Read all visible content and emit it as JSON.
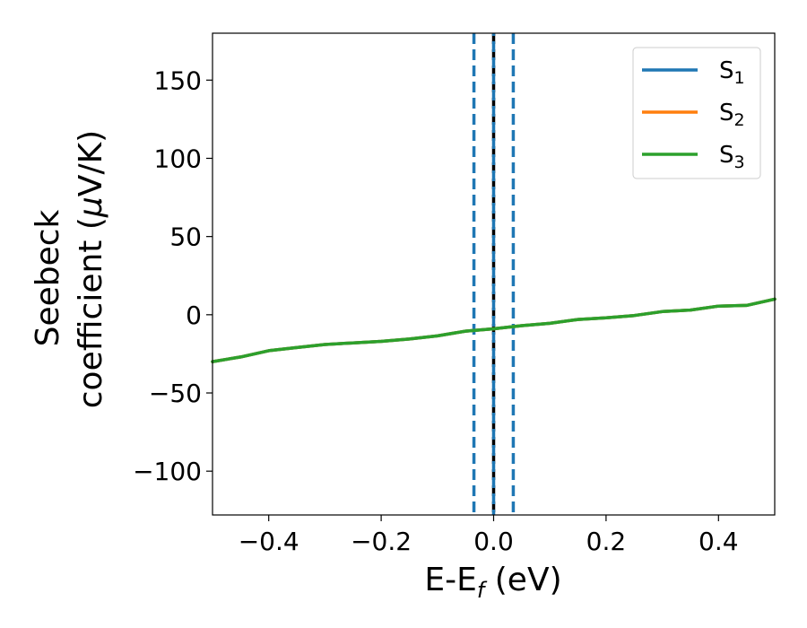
{
  "chart_data": {
    "type": "line",
    "xlabel": {
      "main": "E-E",
      "sub": "f",
      "unit": " (eV)"
    },
    "ylabel": {
      "line1": "Seebeck",
      "line2": "coefficient  (",
      "mu": "μ",
      "unit": "V/K)"
    },
    "xlim": [
      -0.5,
      0.5
    ],
    "ylim": [
      -128,
      180
    ],
    "xticks": [
      -0.4,
      -0.2,
      0.0,
      0.2,
      0.4
    ],
    "xtick_labels": [
      "−0.4",
      "−0.2",
      "0.0",
      "0.2",
      "0.4"
    ],
    "yticks": [
      -100,
      -50,
      0,
      50,
      100,
      150
    ],
    "ytick_labels": [
      "−100",
      "−50",
      "0",
      "50",
      "100",
      "150"
    ],
    "grid": false,
    "legend_position": "top-right",
    "x": [
      -0.5,
      -0.45,
      -0.4,
      -0.35,
      -0.3,
      -0.25,
      -0.2,
      -0.15,
      -0.1,
      -0.05,
      0.0,
      0.05,
      0.1,
      0.15,
      0.2,
      0.25,
      0.3,
      0.35,
      0.4,
      0.45,
      0.5
    ],
    "series": [
      {
        "name": "S",
        "sub": "1",
        "color": "#1f77b4",
        "values": [
          -30,
          -27,
          -23,
          -21,
          -19,
          -18,
          -17,
          -15.5,
          -13.5,
          -10.5,
          -9,
          -7,
          -5.5,
          -3,
          -2,
          -0.5,
          2,
          3,
          5.5,
          6,
          10
        ]
      },
      {
        "name": "S",
        "sub": "2",
        "color": "#ff7f0e",
        "values": [
          -30,
          -27,
          -23,
          -21,
          -19,
          -18,
          -17,
          -15.5,
          -13.5,
          -10.5,
          -9,
          -7,
          -5.5,
          -3,
          -2,
          -0.5,
          2,
          3,
          5.5,
          6,
          10
        ]
      },
      {
        "name": "S",
        "sub": "3",
        "color": "#2ca02c",
        "values": [
          -30,
          -27,
          -23,
          -21,
          -19,
          -18,
          -17,
          -15.5,
          -13.5,
          -10.5,
          -9,
          -7,
          -5.5,
          -3,
          -2,
          -0.5,
          2,
          3,
          5.5,
          6,
          10
        ]
      }
    ],
    "vlines": [
      {
        "x": -0.035,
        "color": "#1f77b4",
        "style": "dashed"
      },
      {
        "x": 0.0,
        "color": "#000000",
        "style": "dashed"
      },
      {
        "x": 0.0,
        "color": "#1f77b4",
        "style": "dashed-offset"
      },
      {
        "x": 0.035,
        "color": "#1f77b4",
        "style": "dashed"
      }
    ]
  }
}
